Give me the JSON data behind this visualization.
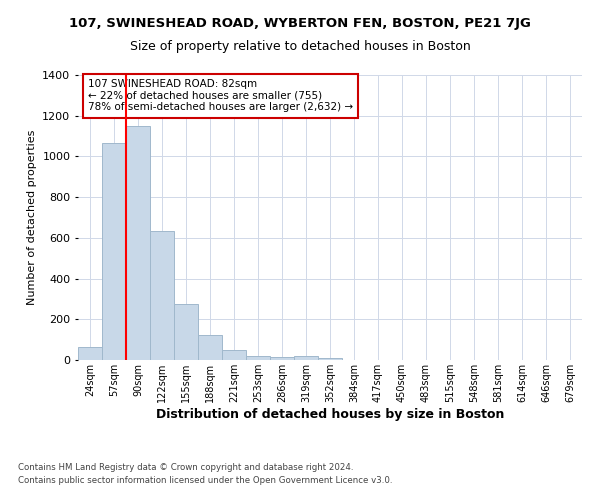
{
  "title1": "107, SWINESHEAD ROAD, WYBERTON FEN, BOSTON, PE21 7JG",
  "title2": "Size of property relative to detached houses in Boston",
  "xlabel": "Distribution of detached houses by size in Boston",
  "ylabel": "Number of detached properties",
  "categories": [
    "24sqm",
    "57sqm",
    "90sqm",
    "122sqm",
    "155sqm",
    "188sqm",
    "221sqm",
    "253sqm",
    "286sqm",
    "319sqm",
    "352sqm",
    "384sqm",
    "417sqm",
    "450sqm",
    "483sqm",
    "515sqm",
    "548sqm",
    "581sqm",
    "614sqm",
    "646sqm",
    "679sqm"
  ],
  "values": [
    65,
    1065,
    1150,
    635,
    275,
    125,
    47,
    20,
    15,
    20,
    12,
    0,
    0,
    0,
    0,
    0,
    0,
    0,
    0,
    0,
    0
  ],
  "bar_color": "#c8d8e8",
  "bar_edge_color": "#a0b8cc",
  "red_line_x": 1.5,
  "annotation_text": "107 SWINESHEAD ROAD: 82sqm\n← 22% of detached houses are smaller (755)\n78% of semi-detached houses are larger (2,632) →",
  "annotation_box_color": "#ffffff",
  "annotation_box_edge": "#cc0000",
  "ylim": [
    0,
    1400
  ],
  "yticks": [
    0,
    200,
    400,
    600,
    800,
    1000,
    1200,
    1400
  ],
  "footer1": "Contains HM Land Registry data © Crown copyright and database right 2024.",
  "footer2": "Contains public sector information licensed under the Open Government Licence v3.0.",
  "bg_color": "#ffffff",
  "grid_color": "#d0d8e8"
}
